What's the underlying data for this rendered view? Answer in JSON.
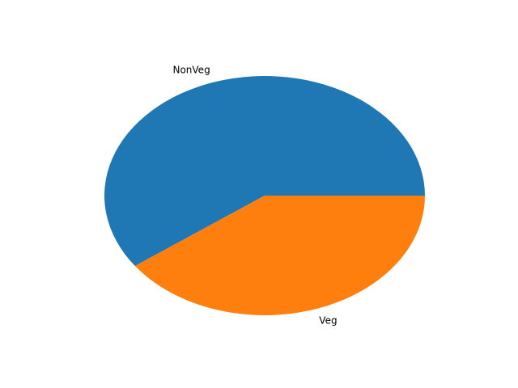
{
  "chart_data": {
    "type": "pie",
    "title": "",
    "slices": [
      {
        "label": "NonVeg",
        "value": 60,
        "color": "#1f77b4"
      },
      {
        "label": "Veg",
        "value": 40,
        "color": "#ff7f0e"
      }
    ],
    "start_angle_deg": 0,
    "direction": "counterclockwise",
    "legend": "none"
  }
}
